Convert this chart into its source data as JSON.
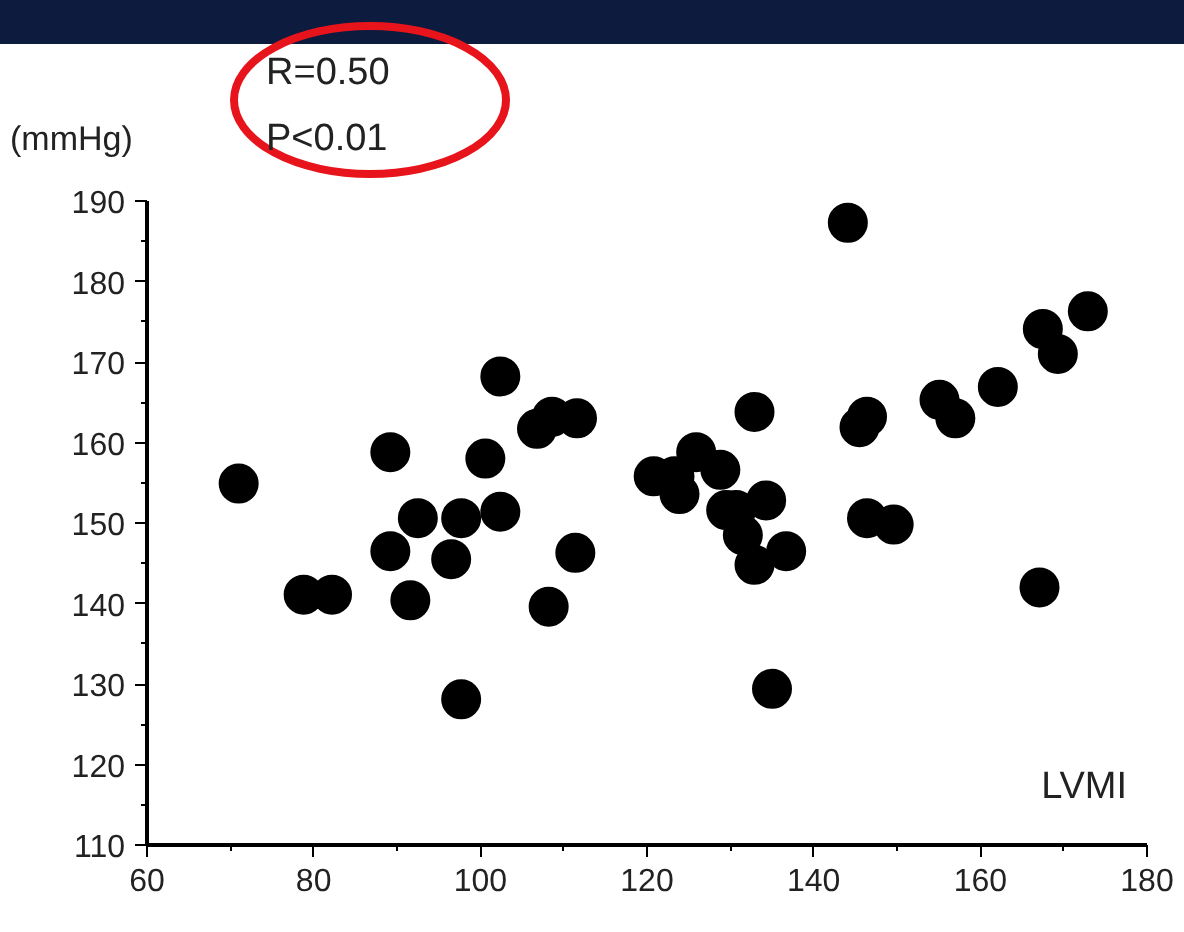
{
  "chart_data": {
    "type": "scatter",
    "ylabel": "(mmHg)",
    "xlabel": "LVMI",
    "annotations": [
      "R=0.50",
      "P<0.01"
    ],
    "xlim": [
      60,
      180
    ],
    "xticks": [
      60,
      80,
      100,
      120,
      140,
      160,
      180
    ],
    "ylim": [
      110,
      190
    ],
    "yticks": [
      110,
      120,
      130,
      140,
      150,
      160,
      170,
      180,
      190
    ],
    "grid": false,
    "marker": "circle",
    "series": [
      {
        "color": "#000000",
        "x": [
          71.0,
          78.8,
          82.2,
          89.2,
          89.2,
          91.6,
          92.5,
          96.5,
          97.7,
          97.7,
          100.6,
          102.4,
          102.4,
          106.8,
          108.6,
          111.6,
          108.2,
          111.4,
          144.1,
          172.9,
          167.5,
          169.3,
          162.1,
          155.1,
          157.0,
          146.4,
          145.5,
          132.9,
          125.9,
          128.8,
          120.8,
          123.3,
          123.9,
          129.5,
          130.7,
          134.3,
          131.5,
          132.9,
          136.7,
          146.4,
          149.6,
          167.1,
          135.0
        ],
        "values": [
          154.9,
          141.1,
          141.1,
          158.8,
          146.5,
          140.4,
          150.6,
          145.5,
          150.6,
          128.1,
          158.0,
          168.2,
          151.4,
          161.7,
          163.2,
          163.0,
          139.6,
          146.3,
          187.3,
          176.3,
          174.1,
          171.0,
          166.9,
          165.3,
          163.0,
          163.2,
          161.9,
          163.8,
          158.8,
          156.6,
          155.8,
          155.8,
          153.6,
          151.6,
          151.6,
          152.8,
          148.5,
          144.8,
          146.5,
          150.6,
          149.8,
          142.0,
          129.4
        ]
      }
    ]
  }
}
